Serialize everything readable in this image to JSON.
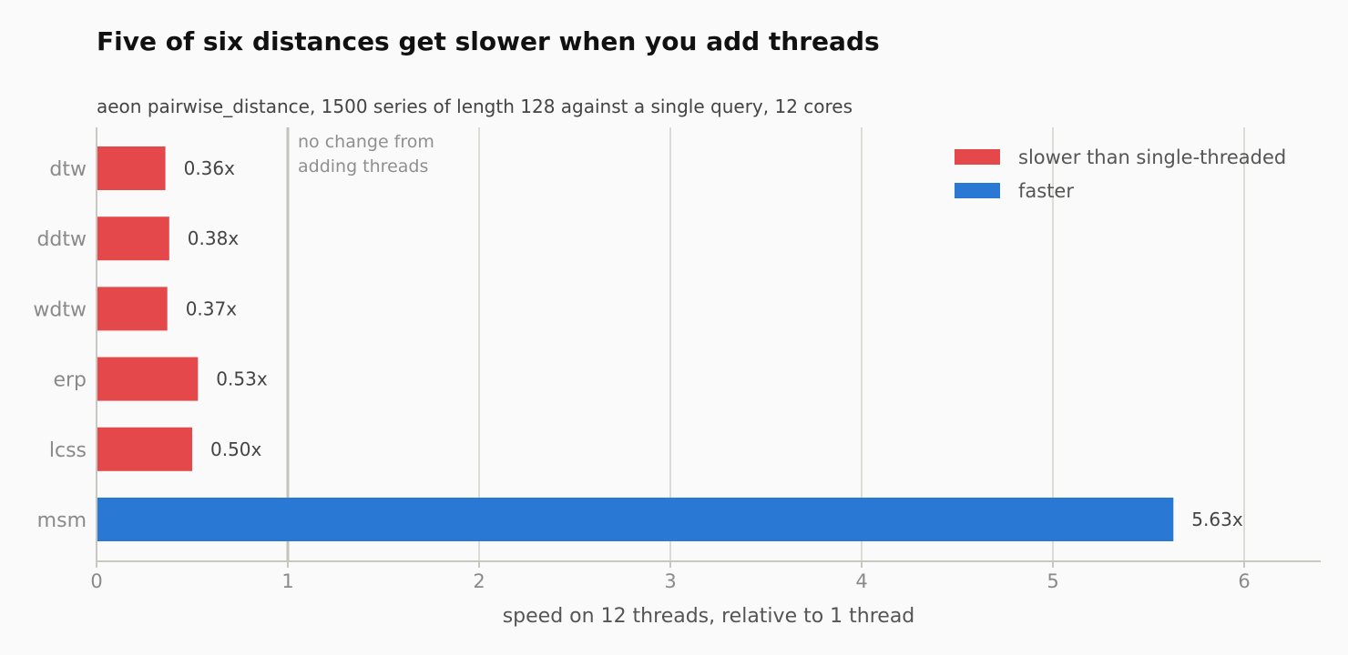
{
  "colors": {
    "slower": "#e4484b",
    "faster": "#2979d4"
  },
  "chart_data": {
    "type": "bar",
    "orientation": "horizontal",
    "title": "Five of six distances get slower when you add threads",
    "subtitle": "aeon pairwise_distance, 1500 series of length 128 against a single query, 12 cores",
    "xlabel": "speed on 12 threads, relative to 1 thread",
    "ylabel": "",
    "xlim": [
      0,
      6.4
    ],
    "xticks": [
      "0",
      "1",
      "2",
      "3",
      "4",
      "5",
      "6"
    ],
    "grid": "vertical",
    "categories": [
      "dtw",
      "ddtw",
      "wdtw",
      "erp",
      "lcss",
      "msm"
    ],
    "values": [
      0.36,
      0.38,
      0.37,
      0.53,
      0.5,
      5.63
    ],
    "value_labels": [
      "0.36x",
      "0.38x",
      "0.37x",
      "0.53x",
      "0.50x",
      "5.63x"
    ],
    "bar_group": [
      "slower",
      "slower",
      "slower",
      "slower",
      "slower",
      "faster"
    ],
    "reference_line": {
      "x": 1,
      "annotation": [
        "no change from",
        "adding threads"
      ]
    },
    "legend": {
      "placement": "top-right",
      "entries": [
        {
          "key": "slower",
          "label": "slower than single-threaded"
        },
        {
          "key": "faster",
          "label": "faster"
        }
      ]
    }
  }
}
